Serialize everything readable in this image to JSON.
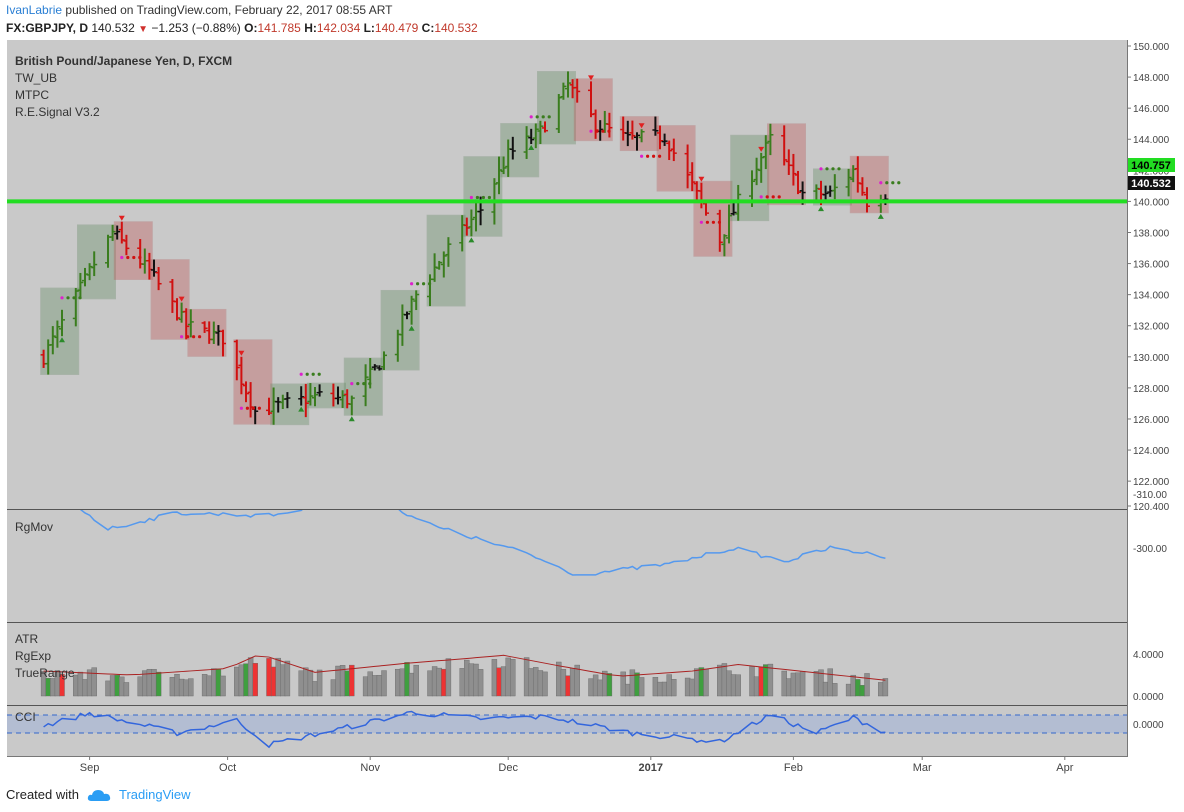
{
  "header": {
    "author": "IvanLabrie",
    "published_text": "published on TradingView.com, February 22, 2017 08:55 ART",
    "symbol": "FX:GBPJPY, D",
    "last": "140.532",
    "change": "−1.253 (−0.88%)",
    "open_label": "O:",
    "open": "141.785",
    "high_label": "H:",
    "high": "142.034",
    "low_label": "L:",
    "low": "140.479",
    "close_label": "C:",
    "close": "140.532"
  },
  "legend": {
    "title": "British Pound/Japanese Yen, D, FXCM",
    "lines": [
      "TW_UB",
      "MTPC",
      "R.E.Signal V3.2"
    ]
  },
  "footer": {
    "created_with": "Created with",
    "brand": "TradingView"
  },
  "colors": {
    "up": "#3a7d1e",
    "down": "#d01010",
    "neutral": "#111111",
    "hline": "#22dd22",
    "rgmov": "#5599ee",
    "cci": "#3366dd",
    "atr_line": "#aa2222",
    "green_box": "#5e8a5e",
    "red_box": "#c05050",
    "panel_bg": "#c9c9c9"
  },
  "chart_data": [
    {
      "type": "ohlc",
      "title": "British Pound/Japanese Yen, D, FXCM",
      "ylim": [
        119.6,
        150.4
      ],
      "y_ticks": [
        "150.000",
        "148.000",
        "146.000",
        "144.000",
        "142.000",
        "140.000",
        "138.000",
        "136.000",
        "134.000",
        "132.000",
        "130.000",
        "128.000",
        "126.000",
        "124.000",
        "122.000",
        "120.400"
      ],
      "x_ticks": [
        "Sep",
        "Oct",
        "Nov",
        "Dec",
        "2017",
        "Feb",
        "Mar",
        "Apr"
      ],
      "hline": 140.0,
      "labels": [
        "140.757",
        "140.532"
      ],
      "keypoints": [
        {
          "date": "2016-08-22",
          "close": 130.0
        },
        {
          "date": "2016-09-01",
          "close": 135.5
        },
        {
          "date": "2016-09-06",
          "close": 138.0
        },
        {
          "date": "2016-09-14",
          "close": 135.5
        },
        {
          "date": "2016-09-22",
          "close": 132.0
        },
        {
          "date": "2016-09-30",
          "close": 131.2
        },
        {
          "date": "2016-10-07",
          "close": 126.5
        },
        {
          "date": "2016-10-14",
          "close": 127.0
        },
        {
          "date": "2016-10-21",
          "close": 127.5
        },
        {
          "date": "2016-10-28",
          "close": 127.2
        },
        {
          "date": "2016-11-04",
          "close": 130.0
        },
        {
          "date": "2016-11-11",
          "close": 134.0
        },
        {
          "date": "2016-11-18",
          "close": 137.0
        },
        {
          "date": "2016-11-25",
          "close": 139.5
        },
        {
          "date": "2016-12-01",
          "close": 143.0
        },
        {
          "date": "2016-12-08",
          "close": 144.5
        },
        {
          "date": "2016-12-14",
          "close": 147.5
        },
        {
          "date": "2016-12-20",
          "close": 145.0
        },
        {
          "date": "2016-12-27",
          "close": 144.0
        },
        {
          "date": "2017-01-04",
          "close": 144.2
        },
        {
          "date": "2017-01-10",
          "close": 141.0
        },
        {
          "date": "2017-01-16",
          "close": 137.5
        },
        {
          "date": "2017-01-20",
          "close": 140.0
        },
        {
          "date": "2017-01-27",
          "close": 144.0
        },
        {
          "date": "2017-02-03",
          "close": 140.5
        },
        {
          "date": "2017-02-09",
          "close": 140.5
        },
        {
          "date": "2017-02-14",
          "close": 142.0
        },
        {
          "date": "2017-02-17",
          "close": 140.0
        },
        {
          "date": "2017-02-21",
          "close": 140.5
        }
      ]
    },
    {
      "type": "line",
      "name": "RgMov",
      "y_ticks": [
        "-300.00",
        "-310.00"
      ],
      "keypoints": [
        {
          "date": "2016-08-22",
          "value": -312.5
        },
        {
          "date": "2016-09-05",
          "value": -303.5
        },
        {
          "date": "2016-09-20",
          "value": -306.5
        },
        {
          "date": "2016-10-10",
          "value": -306.0
        },
        {
          "date": "2016-11-01",
          "value": -309.5
        },
        {
          "date": "2016-11-15",
          "value": -304.0
        },
        {
          "date": "2016-12-05",
          "value": -299.0
        },
        {
          "date": "2016-12-16",
          "value": -295.0
        },
        {
          "date": "2017-01-05",
          "value": -297.0
        },
        {
          "date": "2017-01-19",
          "value": -300.0
        },
        {
          "date": "2017-01-30",
          "value": -297.5
        },
        {
          "date": "2017-02-09",
          "value": -300.0
        },
        {
          "date": "2017-02-21",
          "value": -298.5
        }
      ]
    },
    {
      "type": "bar",
      "names": [
        "ATR",
        "RgExp",
        "TrueRange"
      ],
      "y_ticks": [
        "4.0000",
        "0.0000"
      ],
      "keypoints": [
        {
          "date": "2016-08-22",
          "value": 1.9
        },
        {
          "date": "2016-09-10",
          "value": 1.6
        },
        {
          "date": "2016-10-01",
          "value": 2.1
        },
        {
          "date": "2016-10-08",
          "value": 3.2
        },
        {
          "date": "2016-10-20",
          "value": 1.8
        },
        {
          "date": "2016-11-09",
          "value": 2.5
        },
        {
          "date": "2016-11-20",
          "value": 2.8
        },
        {
          "date": "2016-11-30",
          "value": 3.1
        },
        {
          "date": "2016-12-12",
          "value": 2.3
        },
        {
          "date": "2016-12-25",
          "value": 1.5
        },
        {
          "date": "2017-01-10",
          "value": 1.9
        },
        {
          "date": "2017-01-20",
          "value": 2.4
        },
        {
          "date": "2017-02-05",
          "value": 1.8
        },
        {
          "date": "2017-02-21",
          "value": 1.2
        }
      ]
    },
    {
      "type": "line",
      "name": "CCI",
      "y_ticks": [
        "0.0000"
      ],
      "keypoints": [
        {
          "date": "2016-08-22",
          "value": -20
        },
        {
          "date": "2016-09-01",
          "value": 120
        },
        {
          "date": "2016-09-20",
          "value": -100
        },
        {
          "date": "2016-10-03",
          "value": 40
        },
        {
          "date": "2016-10-10",
          "value": -230
        },
        {
          "date": "2016-10-25",
          "value": -60
        },
        {
          "date": "2016-11-10",
          "value": 130
        },
        {
          "date": "2016-11-25",
          "value": 60
        },
        {
          "date": "2016-12-10",
          "value": 80
        },
        {
          "date": "2016-12-28",
          "value": -100
        },
        {
          "date": "2017-01-16",
          "value": -200
        },
        {
          "date": "2017-01-27",
          "value": 100
        },
        {
          "date": "2017-02-06",
          "value": -100
        },
        {
          "date": "2017-02-14",
          "value": 70
        },
        {
          "date": "2017-02-21",
          "value": -90
        }
      ]
    }
  ]
}
